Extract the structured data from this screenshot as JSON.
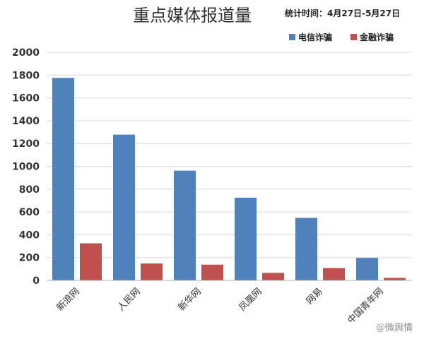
{
  "chart_data": {
    "type": "bar",
    "title": "重点媒体报道量",
    "subtitle": "统计时间：4月27日-5月27日",
    "categories": [
      "新浪网",
      "人民网",
      "新华网",
      "凤凰网",
      "网易",
      "中国青年网"
    ],
    "series": [
      {
        "name": "电信诈骗",
        "color": "#4f81bd",
        "values": [
          1775,
          1278,
          962,
          725,
          548,
          197
        ]
      },
      {
        "name": "金融诈骗",
        "color": "#c0504d",
        "values": [
          325,
          148,
          138,
          66,
          108,
          22
        ]
      }
    ],
    "yticks": [
      0,
      200,
      400,
      600,
      800,
      1000,
      1200,
      1400,
      1600,
      1800,
      2000
    ],
    "ylim": [
      0,
      2000
    ],
    "grid": true,
    "legend_position": "top-right",
    "xlabel": "",
    "ylabel": ""
  },
  "watermark": "@微舆情"
}
